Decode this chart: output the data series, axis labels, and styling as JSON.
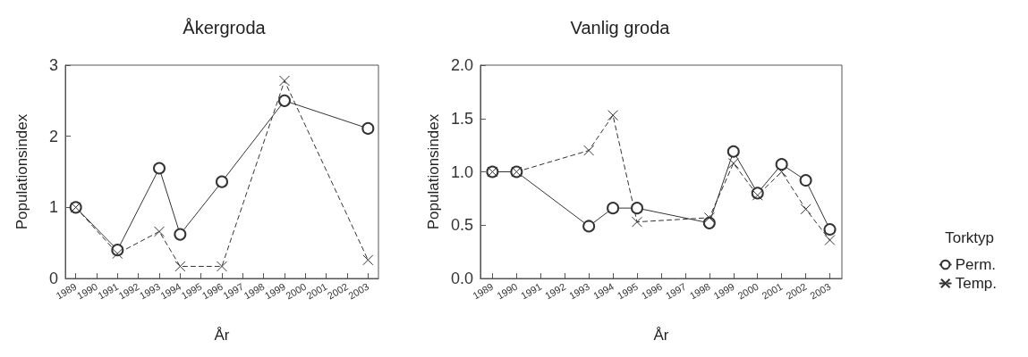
{
  "chart_data": [
    {
      "type": "line",
      "title": "Åkergroda",
      "xlabel": "År",
      "ylabel": "Populationsindex",
      "categories": [
        "1989",
        "1990",
        "1991",
        "1992",
        "1993",
        "1994",
        "1995",
        "1996",
        "1997",
        "1998",
        "1999",
        "2000",
        "2001",
        "2002",
        "2003"
      ],
      "series": [
        {
          "color": "#333333",
          "marker": "circle",
          "line_style": "solid",
          "values": [
            1.0,
            null,
            0.4,
            null,
            1.55,
            0.62,
            null,
            1.36,
            null,
            null,
            2.5,
            null,
            null,
            null,
            2.11
          ]
        },
        {
          "color": "#333333",
          "marker": "cross",
          "line_style": "dashed",
          "values": [
            1.0,
            null,
            0.35,
            null,
            0.66,
            0.17,
            null,
            0.17,
            null,
            null,
            2.78,
            null,
            null,
            null,
            0.26
          ]
        }
      ],
      "ylim": [
        0,
        3
      ],
      "yticks": [
        0,
        1,
        2,
        3
      ],
      "grid": false,
      "legend": false
    },
    {
      "type": "line",
      "title": "Vanlig groda",
      "xlabel": "År",
      "ylabel": "Populationsindex",
      "legend_title": "Torktyp",
      "categories": [
        "1989",
        "1990",
        "1991",
        "1992",
        "1993",
        "1994",
        "1995",
        "1996",
        "1997",
        "1998",
        "1999",
        "2000",
        "2001",
        "2002",
        "2003"
      ],
      "series": [
        {
          "name": "Perm.",
          "color": "#333333",
          "marker": "circle",
          "line_style": "solid",
          "values": [
            1.0,
            1.0,
            null,
            null,
            0.49,
            0.66,
            0.66,
            null,
            null,
            0.52,
            1.19,
            0.8,
            1.07,
            0.92,
            0.46
          ]
        },
        {
          "name": "Temp.",
          "color": "#333333",
          "marker": "cross",
          "line_style": "dashed",
          "values": [
            1.0,
            1.0,
            null,
            null,
            1.2,
            1.53,
            0.53,
            null,
            null,
            0.57,
            1.08,
            0.78,
            1.0,
            0.65,
            0.36
          ]
        }
      ],
      "ylim": [
        0,
        2
      ],
      "yticks": [
        {
          "value": 0,
          "label": "0.0"
        },
        {
          "value": 0.5,
          "label": "0.5"
        },
        {
          "value": 1,
          "label": "1.0"
        },
        {
          "value": 1.5,
          "label": "1.5"
        },
        {
          "value": 2,
          "label": "2.0"
        }
      ],
      "grid": false,
      "legend": "right"
    }
  ]
}
